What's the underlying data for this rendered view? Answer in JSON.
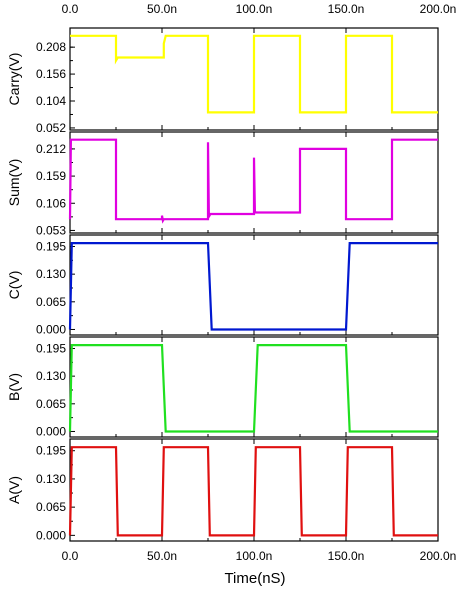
{
  "chart_data": {
    "type": "line",
    "xlabel": "Time(nS)",
    "xlim": [
      0,
      200
    ],
    "x_ticks": [
      0,
      50,
      100,
      150,
      200
    ],
    "x_tick_labels": [
      "0.0",
      "50.0n",
      "100.0n",
      "150.0n",
      "200.0n"
    ],
    "panels": [
      {
        "ylabel": "Carry(V)",
        "color": "#ffff00",
        "ylim": [
          0.048,
          0.245
        ],
        "y_ticks": [
          0.052,
          0.104,
          0.156,
          0.208
        ],
        "y_tick_labels": [
          "0.052",
          "0.104",
          "0.156",
          "0.208"
        ],
        "x": [
          0,
          25,
          25,
          26,
          51,
          51,
          52,
          75,
          75,
          76,
          100,
          100,
          101,
          125,
          125,
          126,
          150,
          150,
          151,
          175,
          175,
          176,
          200
        ],
        "values": [
          0.23,
          0.23,
          0.182,
          0.188,
          0.188,
          0.215,
          0.23,
          0.23,
          0.082,
          0.082,
          0.082,
          0.23,
          0.23,
          0.23,
          0.082,
          0.082,
          0.082,
          0.23,
          0.23,
          0.23,
          0.082,
          0.082,
          0.082
        ]
      },
      {
        "ylabel": "Sum(V)",
        "color": "#e000e0",
        "ylim": [
          0.048,
          0.245
        ],
        "y_ticks": [
          0.053,
          0.106,
          0.159,
          0.212
        ],
        "y_tick_labels": [
          "0.053",
          "0.106",
          "0.159",
          "0.212"
        ],
        "x": [
          0,
          0.5,
          25,
          25,
          50,
          50,
          50.5,
          51,
          75,
          75,
          75.5,
          76,
          76,
          100,
          100,
          100.5,
          101,
          125,
          125,
          126,
          150,
          150,
          151,
          175,
          175,
          176,
          200
        ],
        "values": [
          0.075,
          0.23,
          0.23,
          0.075,
          0.075,
          0.082,
          0.072,
          0.075,
          0.075,
          0.225,
          0.08,
          0.083,
          0.085,
          0.085,
          0.195,
          0.09,
          0.088,
          0.088,
          0.212,
          0.212,
          0.212,
          0.075,
          0.075,
          0.075,
          0.23,
          0.23,
          0.23
        ]
      },
      {
        "ylabel": "C(V)",
        "color": "#0018d0",
        "ylim": [
          -0.013,
          0.222
        ],
        "y_ticks": [
          0.0,
          0.065,
          0.13,
          0.195
        ],
        "y_tick_labels": [
          "0.000",
          "0.065",
          "0.130",
          "0.195"
        ],
        "x": [
          0,
          1,
          75,
          77,
          150,
          152,
          200
        ],
        "values": [
          0.0,
          0.203,
          0.203,
          0.0,
          0.0,
          0.203,
          0.203
        ]
      },
      {
        "ylabel": "B(V)",
        "color": "#20e020",
        "ylim": [
          -0.013,
          0.222
        ],
        "y_ticks": [
          0.0,
          0.065,
          0.13,
          0.195
        ],
        "y_tick_labels": [
          "0.000",
          "0.065",
          "0.130",
          "0.195"
        ],
        "x": [
          0,
          1,
          50,
          52,
          100,
          102,
          150,
          152,
          200
        ],
        "values": [
          0.0,
          0.203,
          0.203,
          0.0,
          0.0,
          0.203,
          0.203,
          0.0,
          0.0
        ]
      },
      {
        "ylabel": "A(V)",
        "color": "#e01010",
        "ylim": [
          -0.013,
          0.222
        ],
        "y_ticks": [
          0.0,
          0.065,
          0.13,
          0.195
        ],
        "y_tick_labels": [
          "0.000",
          "0.065",
          "0.130",
          "0.195"
        ],
        "x": [
          0,
          1,
          25,
          26,
          50,
          51,
          75,
          76,
          100,
          101,
          125,
          126,
          150,
          151,
          175,
          176,
          200
        ],
        "values": [
          0.0,
          0.203,
          0.203,
          0.0,
          0.0,
          0.203,
          0.203,
          0.0,
          0.0,
          0.203,
          0.203,
          0.0,
          0.0,
          0.203,
          0.203,
          0.0,
          0.0
        ]
      }
    ]
  }
}
